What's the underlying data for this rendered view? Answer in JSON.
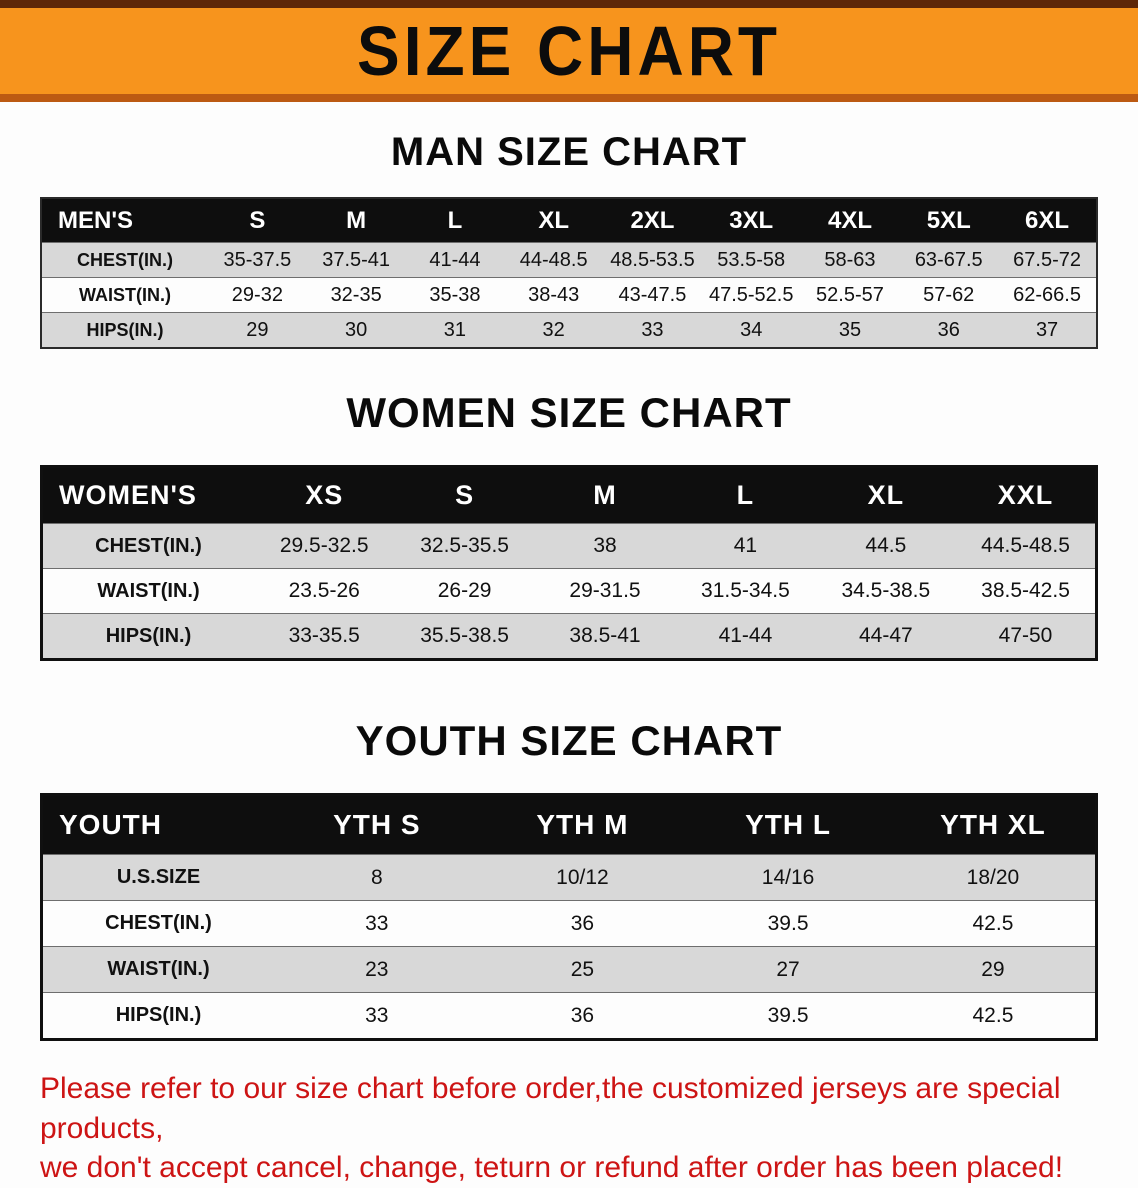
{
  "banner": {
    "title": "SIZE CHART"
  },
  "men": {
    "heading": "MAN SIZE CHART",
    "table": {
      "header": [
        "MEN'S",
        "S",
        "M",
        "L",
        "XL",
        "2XL",
        "3XL",
        "4XL",
        "5XL",
        "6XL"
      ],
      "rows": [
        [
          "CHEST(IN.)",
          "35-37.5",
          "37.5-41",
          "41-44",
          "44-48.5",
          "48.5-53.5",
          "53.5-58",
          "58-63",
          "63-67.5",
          "67.5-72"
        ],
        [
          "WAIST(IN.)",
          "29-32",
          "32-35",
          "35-38",
          "38-43",
          "43-47.5",
          "47.5-52.5",
          "52.5-57",
          "57-62",
          "62-66.5"
        ],
        [
          "HIPS(IN.)",
          "29",
          "30",
          "31",
          "32",
          "33",
          "34",
          "35",
          "36",
          "37"
        ]
      ]
    }
  },
  "women": {
    "heading": "WOMEN SIZE CHART",
    "table": {
      "header": [
        "WOMEN'S",
        "XS",
        "S",
        "M",
        "L",
        "XL",
        "XXL"
      ],
      "rows": [
        [
          "CHEST(IN.)",
          "29.5-32.5",
          "32.5-35.5",
          "38",
          "41",
          "44.5",
          "44.5-48.5"
        ],
        [
          "WAIST(IN.)",
          "23.5-26",
          "26-29",
          "29-31.5",
          "31.5-34.5",
          "34.5-38.5",
          "38.5-42.5"
        ],
        [
          "HIPS(IN.)",
          "33-35.5",
          "35.5-38.5",
          "38.5-41",
          "41-44",
          "44-47",
          "47-50"
        ]
      ]
    }
  },
  "youth": {
    "heading": "YOUTH SIZE CHART",
    "table": {
      "header": [
        "YOUTH",
        "YTH S",
        "YTH M",
        "YTH L",
        "YTH XL"
      ],
      "rows": [
        [
          "U.S.SIZE",
          "8",
          "10/12",
          "14/16",
          "18/20"
        ],
        [
          "CHEST(IN.)",
          "33",
          "36",
          "39.5",
          "42.5"
        ],
        [
          "WAIST(IN.)",
          "23",
          "25",
          "27",
          "29"
        ],
        [
          "HIPS(IN.)",
          "33",
          "36",
          "39.5",
          "42.5"
        ]
      ]
    }
  },
  "disclaimer": {
    "line1": "Please refer to our size chart before order,the customized jerseys are special products,",
    "line2": "we don't accept cancel, change, teturn or refund after order has been placed!"
  },
  "palette": {
    "banner_orange": "#F7941D",
    "banner_top_border": "#5E2708",
    "banner_bottom_border": "#BC5A12",
    "table_header_black": "#0E0E0E",
    "row_gray": "#D8D8D8",
    "disclaimer_red": "#CD1414"
  }
}
